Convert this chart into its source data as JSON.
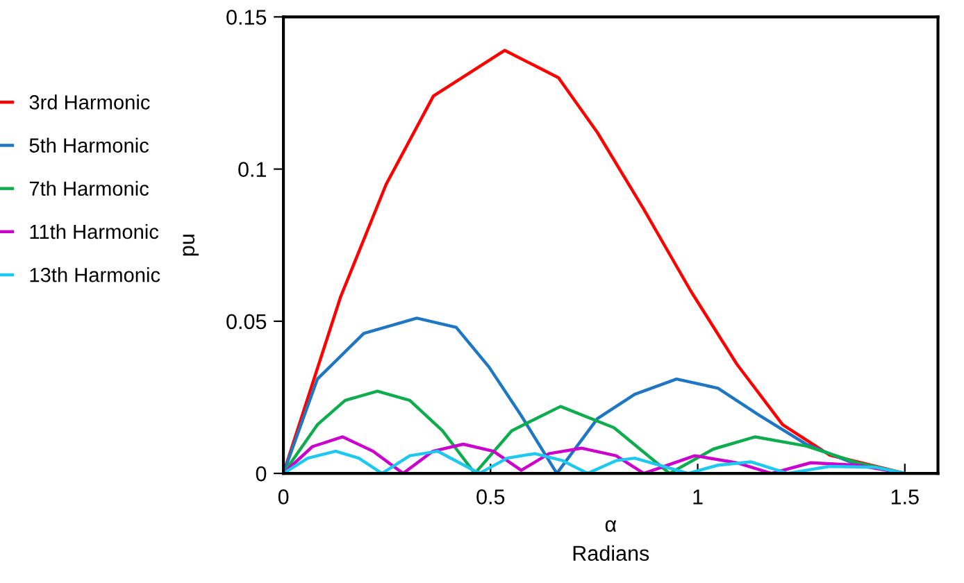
{
  "chart_data": {
    "type": "line",
    "xlabel": "α\nRadians",
    "ylabel": "pu",
    "xlim": [
      0,
      1.58
    ],
    "ylim": [
      0,
      0.15
    ],
    "xticks": [
      0,
      0.5,
      1,
      1.5
    ],
    "yticks": [
      0,
      0.05,
      0.1,
      0.15
    ],
    "grid": false,
    "legend": "left",
    "marker": "none",
    "line_style": "solid",
    "series": [
      {
        "name": "3rd Harmonic",
        "color": "#ff0000",
        "x": [
          0,
          0.138,
          0.248,
          0.362,
          0.534,
          0.664,
          0.758,
          0.869,
          0.983,
          1.094,
          1.205,
          1.319,
          1.5
        ],
        "values": [
          0,
          0.058,
          0.095,
          0.124,
          0.139,
          0.13,
          0.112,
          0.087,
          0.06,
          0.036,
          0.016,
          0.006,
          0
        ]
      },
      {
        "name": "5th Harmonic",
        "color": "#1f77c4",
        "x": [
          0,
          0.082,
          0.194,
          0.322,
          0.417,
          0.496,
          0.574,
          0.66,
          0.758,
          0.848,
          0.949,
          1.049,
          1.15,
          1.262,
          1.373,
          1.5
        ],
        "values": [
          0,
          0.031,
          0.046,
          0.051,
          0.048,
          0.035,
          0.019,
          0,
          0.018,
          0.026,
          0.031,
          0.028,
          0.019,
          0.0096,
          0.0035,
          0
        ]
      },
      {
        "name": "7th Harmonic",
        "color": "#0fac4f",
        "x": [
          0,
          0.082,
          0.149,
          0.227,
          0.305,
          0.384,
          0.462,
          0.551,
          0.669,
          0.798,
          0.932,
          1.038,
          1.139,
          1.262,
          1.385,
          1.5
        ],
        "values": [
          0,
          0.016,
          0.024,
          0.027,
          0.024,
          0.014,
          0,
          0.014,
          0.022,
          0.015,
          0,
          0.008,
          0.012,
          0.009,
          0.0035,
          0
        ]
      },
      {
        "name": "11th Harmonic",
        "color": "#cc00cc",
        "x": [
          0,
          0.07,
          0.143,
          0.216,
          0.289,
          0.361,
          0.434,
          0.507,
          0.574,
          0.641,
          0.719,
          0.803,
          0.87,
          0.993,
          1.094,
          1.178,
          1.273,
          1.385,
          1.5
        ],
        "values": [
          0,
          0.0088,
          0.012,
          0.0073,
          0,
          0.0073,
          0.0096,
          0.0073,
          0.001,
          0.0065,
          0.0083,
          0.0058,
          0,
          0.0058,
          0.0035,
          0,
          0.0035,
          0.0027,
          0
        ]
      },
      {
        "name": "13th Harmonic",
        "color": "#1ec8f0",
        "x": [
          0,
          0.059,
          0.126,
          0.182,
          0.238,
          0.305,
          0.372,
          0.473,
          0.54,
          0.607,
          0.674,
          0.734,
          0.803,
          0.848,
          0.977,
          1.049,
          1.128,
          1.217,
          1.318,
          1.43,
          1.5
        ],
        "values": [
          0,
          0.005,
          0.0073,
          0.005,
          0,
          0.0058,
          0.0073,
          0,
          0.005,
          0.0065,
          0.0042,
          0,
          0.0042,
          0.005,
          0,
          0.0027,
          0.0038,
          0,
          0.0023,
          0.002,
          0
        ]
      }
    ]
  }
}
